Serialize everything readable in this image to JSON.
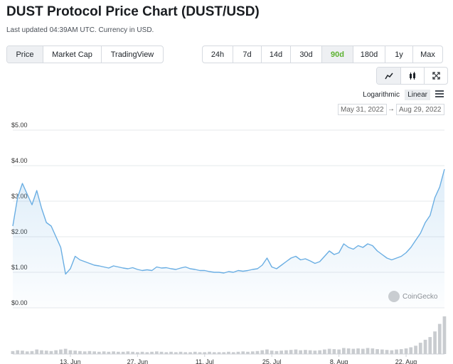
{
  "header": {
    "title": "DUST Protocol Price Chart (DUST/USD)",
    "subtitle": "Last updated 04:39AM UTC. Currency in USD."
  },
  "tabs": [
    "Price",
    "Market Cap",
    "TradingView"
  ],
  "active_tab": "Price",
  "ranges": [
    "24h",
    "7d",
    "14d",
    "30d",
    "90d",
    "180d",
    "1y",
    "Max"
  ],
  "active_range": "90d",
  "chart_types": [
    "line-chart-icon",
    "candlestick-icon",
    "expand-icon"
  ],
  "scale": {
    "log_label": "Logarithmic",
    "linear_label": "Linear"
  },
  "date_range": {
    "from": "May 31, 2022",
    "to": "Aug 29, 2022"
  },
  "watermark": "CoinGecko",
  "colors": {
    "line": "#6aaee3",
    "accent_green": "#5cb230"
  },
  "chart_data": {
    "type": "line",
    "title": "",
    "xlabel": "",
    "ylabel": "",
    "ylim": [
      0,
      5
    ],
    "yticks": [
      0,
      1,
      2,
      3,
      4,
      5
    ],
    "ytick_labels": [
      "$0.00",
      "$1.00",
      "$2.00",
      "$3.00",
      "$4.00",
      "$5.00"
    ],
    "xtick_labels": [
      "13. Jun",
      "27. Jun",
      "11. Jul",
      "25. Jul",
      "8. Aug",
      "22. Aug"
    ],
    "xtick_days": [
      13,
      27,
      41,
      55,
      69,
      83
    ],
    "xlim_days": [
      1,
      91
    ],
    "series": [
      {
        "name": "",
        "x": [
          1,
          2,
          3,
          4,
          5,
          6,
          7,
          8,
          9,
          10,
          11,
          12,
          13,
          14,
          15,
          16,
          17,
          18,
          19,
          20,
          21,
          22,
          23,
          24,
          25,
          26,
          27,
          28,
          29,
          30,
          31,
          32,
          33,
          34,
          35,
          36,
          37,
          38,
          39,
          40,
          41,
          42,
          43,
          44,
          45,
          46,
          47,
          48,
          49,
          50,
          51,
          52,
          53,
          54,
          55,
          56,
          57,
          58,
          59,
          60,
          61,
          62,
          63,
          64,
          65,
          66,
          67,
          68,
          69,
          70,
          71,
          72,
          73,
          74,
          75,
          76,
          77,
          78,
          79,
          80,
          81,
          82,
          83,
          84,
          85,
          86,
          87,
          88,
          89,
          90,
          91
        ],
        "y": [
          2.3,
          3.1,
          3.5,
          3.2,
          2.9,
          3.3,
          2.8,
          2.4,
          2.3,
          2.0,
          1.7,
          0.95,
          1.1,
          1.45,
          1.35,
          1.3,
          1.25,
          1.2,
          1.18,
          1.15,
          1.12,
          1.18,
          1.15,
          1.12,
          1.1,
          1.13,
          1.08,
          1.05,
          1.07,
          1.05,
          1.15,
          1.12,
          1.13,
          1.1,
          1.08,
          1.12,
          1.15,
          1.1,
          1.08,
          1.05,
          1.05,
          1.02,
          1.0,
          1.0,
          0.98,
          1.02,
          1.0,
          1.05,
          1.03,
          1.05,
          1.08,
          1.1,
          1.2,
          1.4,
          1.15,
          1.1,
          1.2,
          1.3,
          1.4,
          1.45,
          1.35,
          1.38,
          1.32,
          1.25,
          1.3,
          1.45,
          1.6,
          1.5,
          1.55,
          1.8,
          1.7,
          1.65,
          1.75,
          1.7,
          1.8,
          1.75,
          1.6,
          1.5,
          1.4,
          1.35,
          1.4,
          1.45,
          1.55,
          1.7,
          1.9,
          2.1,
          2.4,
          2.6,
          3.1,
          3.4,
          3.9
        ]
      }
    ],
    "volume": [
      0.08,
      0.1,
      0.09,
      0.07,
      0.08,
      0.12,
      0.1,
      0.09,
      0.08,
      0.1,
      0.12,
      0.14,
      0.1,
      0.09,
      0.08,
      0.07,
      0.08,
      0.07,
      0.06,
      0.07,
      0.06,
      0.07,
      0.06,
      0.06,
      0.07,
      0.06,
      0.05,
      0.06,
      0.05,
      0.06,
      0.07,
      0.06,
      0.05,
      0.06,
      0.05,
      0.06,
      0.05,
      0.05,
      0.06,
      0.05,
      0.05,
      0.06,
      0.05,
      0.05,
      0.05,
      0.06,
      0.05,
      0.06,
      0.07,
      0.06,
      0.07,
      0.08,
      0.1,
      0.12,
      0.09,
      0.08,
      0.09,
      0.1,
      0.11,
      0.12,
      0.1,
      0.11,
      0.1,
      0.09,
      0.1,
      0.12,
      0.14,
      0.13,
      0.12,
      0.16,
      0.15,
      0.14,
      0.15,
      0.14,
      0.16,
      0.15,
      0.13,
      0.12,
      0.11,
      0.1,
      0.12,
      0.13,
      0.15,
      0.18,
      0.22,
      0.3,
      0.38,
      0.45,
      0.6,
      0.8,
      1.0
    ]
  }
}
